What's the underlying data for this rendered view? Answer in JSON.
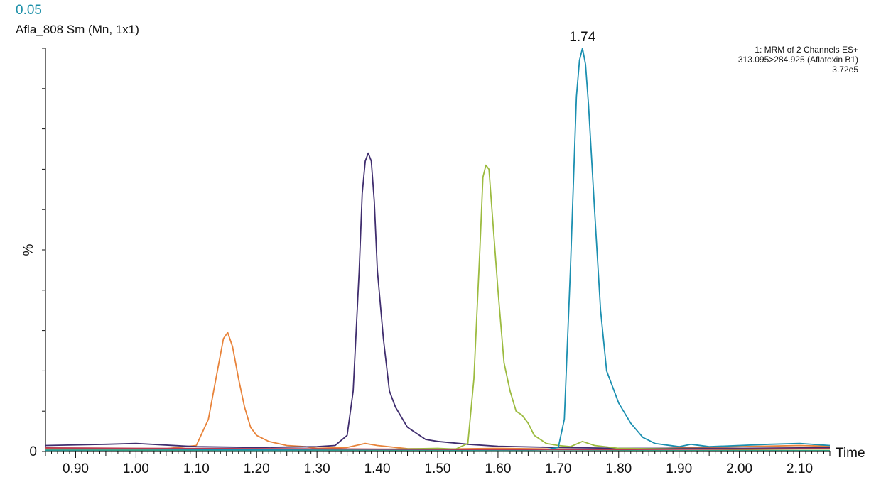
{
  "header": {
    "value": "0.05",
    "name": "Afla_808 Sm (Mn, 1x1)"
  },
  "info": {
    "line1": "1: MRM of 2 Channels ES+",
    "line2": "313.095>284.925 (Aflatoxin B1)",
    "line3": "3.72e5"
  },
  "chart_data": {
    "type": "line",
    "title": "",
    "xlabel": "Time",
    "ylabel": "%",
    "xlim": [
      0.85,
      2.15
    ],
    "ylim": [
      0,
      100
    ],
    "y_ticks": [
      {
        "value": 0,
        "label": "0"
      },
      {
        "value": 50,
        "label": "%"
      }
    ],
    "x_ticks": [
      0.9,
      1.0,
      1.1,
      1.2,
      1.3,
      1.4,
      1.5,
      1.6,
      1.7,
      1.8,
      1.9,
      2.0,
      2.1
    ],
    "x_tick_labels": [
      "0.90",
      "1.00",
      "1.10",
      "1.20",
      "1.30",
      "1.40",
      "1.50",
      "1.60",
      "1.70",
      "1.80",
      "1.90",
      "2.00",
      "2.10"
    ],
    "grid": false,
    "annotations": [
      {
        "x": 1.74,
        "y": 100,
        "text": "1.74"
      }
    ],
    "series": [
      {
        "color": "#e8833a",
        "x": [
          0.85,
          0.95,
          1.05,
          1.1,
          1.12,
          1.135,
          1.145,
          1.152,
          1.16,
          1.17,
          1.18,
          1.19,
          1.2,
          1.22,
          1.25,
          1.28,
          1.3,
          1.35,
          1.38,
          1.4,
          1.45,
          1.5,
          1.6,
          1.7,
          1.8,
          1.9,
          2.0,
          2.1,
          2.15
        ],
        "y": [
          0.8,
          0.6,
          0.7,
          1.5,
          8,
          20,
          28,
          29.5,
          26,
          18,
          11,
          6,
          4,
          2.5,
          1.5,
          1.2,
          0.8,
          1.0,
          2.0,
          1.5,
          0.7,
          0.6,
          0.8,
          0.6,
          0.5,
          0.9,
          1.2,
          1.5,
          1.3
        ]
      },
      {
        "color": "#3f2d6e",
        "x": [
          0.85,
          0.95,
          1.0,
          1.1,
          1.2,
          1.3,
          1.33,
          1.35,
          1.36,
          1.37,
          1.375,
          1.38,
          1.385,
          1.39,
          1.395,
          1.4,
          1.41,
          1.42,
          1.43,
          1.45,
          1.48,
          1.5,
          1.55,
          1.6,
          1.7,
          1.8,
          1.9,
          2.0,
          2.1,
          2.15
        ],
        "y": [
          1.5,
          1.8,
          2.0,
          1.2,
          1.0,
          1.2,
          1.5,
          4,
          15,
          45,
          64,
          72,
          74,
          72,
          62,
          45,
          28,
          15,
          11,
          6,
          3,
          2.5,
          1.8,
          1.3,
          1.0,
          0.8,
          0.8,
          0.8,
          0.9,
          0.9
        ]
      },
      {
        "color": "#9cbb3f",
        "x": [
          0.85,
          1.0,
          1.2,
          1.4,
          1.5,
          1.53,
          1.55,
          1.56,
          1.57,
          1.575,
          1.58,
          1.585,
          1.59,
          1.6,
          1.61,
          1.62,
          1.63,
          1.64,
          1.65,
          1.66,
          1.68,
          1.7,
          1.72,
          1.74,
          1.76,
          1.8,
          1.9,
          2.0,
          2.1,
          2.15
        ],
        "y": [
          0.4,
          0.5,
          0.5,
          0.5,
          0.8,
          0.6,
          2,
          18,
          50,
          68,
          71,
          70,
          60,
          40,
          22,
          15,
          10,
          9,
          7,
          4,
          2,
          1.5,
          1.2,
          2.5,
          1.5,
          0.8,
          0.6,
          0.5,
          0.6,
          0.6
        ]
      },
      {
        "color": "#1b8fb0",
        "x": [
          0.85,
          1.0,
          1.2,
          1.4,
          1.5,
          1.6,
          1.68,
          1.7,
          1.71,
          1.72,
          1.73,
          1.735,
          1.74,
          1.745,
          1.75,
          1.76,
          1.77,
          1.78,
          1.8,
          1.82,
          1.84,
          1.86,
          1.9,
          1.92,
          1.95,
          2.0,
          2.05,
          2.1,
          2.15
        ],
        "y": [
          0.3,
          0.3,
          0.4,
          0.3,
          0.4,
          0.3,
          0.5,
          1.0,
          8,
          45,
          88,
          97,
          100,
          96,
          86,
          60,
          35,
          20,
          12,
          7,
          3.5,
          2,
          1.2,
          1.8,
          1.2,
          1.5,
          1.8,
          2.0,
          1.5
        ]
      },
      {
        "color": "#2a9d7e",
        "x": [
          0.85,
          1.0,
          1.2,
          1.4,
          1.6,
          1.8,
          2.0,
          2.15
        ],
        "y": [
          0.1,
          0.2,
          0.1,
          0.2,
          0.1,
          0.2,
          0.2,
          0.2
        ]
      },
      {
        "color": "#b83a52",
        "x": [
          0.85,
          1.0,
          1.2,
          1.4,
          1.6,
          1.8,
          2.0,
          2.15
        ],
        "y": [
          0.9,
          0.8,
          0.7,
          0.6,
          0.5,
          0.5,
          0.6,
          0.7
        ]
      }
    ]
  }
}
